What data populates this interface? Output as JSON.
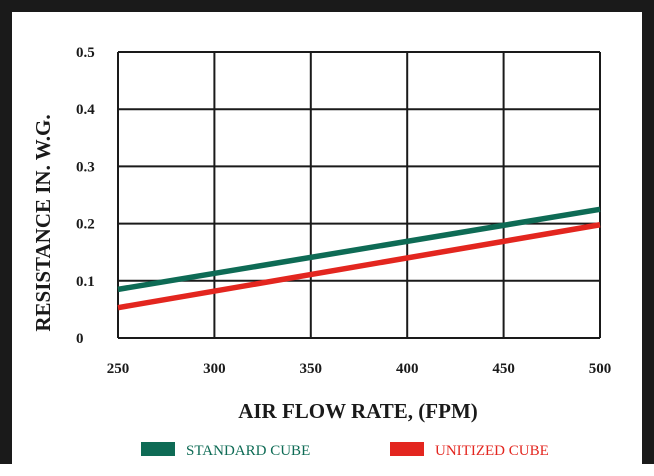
{
  "chart_data": {
    "type": "line",
    "title": "",
    "xlabel": "AIR FLOW RATE, (FPM)",
    "ylabel": "RESISTANCE IN. W.G.",
    "x": [
      250,
      500
    ],
    "xlim": [
      250,
      500
    ],
    "ylim": [
      0,
      0.5
    ],
    "x_ticks": [
      "250",
      "300",
      "350",
      "400",
      "450",
      "500"
    ],
    "y_ticks": [
      "0",
      "0.1",
      "0.2",
      "0.3",
      "0.4",
      "0.5"
    ],
    "grid": true,
    "legend_position": "bottom",
    "series": [
      {
        "name": "STANDARD CUBE",
        "values": [
          0.085,
          0.225
        ],
        "color": "#0e6b55"
      },
      {
        "name": "UNITIZED CUBE",
        "values": [
          0.053,
          0.198
        ],
        "color": "#e3261f"
      }
    ]
  }
}
